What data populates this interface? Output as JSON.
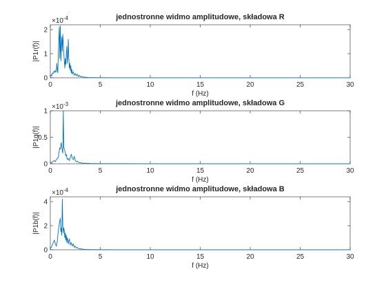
{
  "chart_data": [
    {
      "type": "line",
      "title": "jednostronne widmo amplitudowe, składowa R",
      "xlabel": "f (Hz)",
      "ylabel": "|P1r(f)|",
      "xlim": [
        0,
        30
      ],
      "ylim": [
        0,
        2.2
      ],
      "y_exponent_label": "×10",
      "y_exponent_power": "-4",
      "y_exponent": -4,
      "xticks": [
        "0",
        "5",
        "10",
        "15",
        "20",
        "25",
        "30"
      ],
      "yticks": [
        "0",
        "1",
        "2"
      ],
      "color": "#0072bd",
      "grid": false,
      "series": [
        {
          "x": [
            0.0,
            0.08,
            0.15,
            0.22,
            0.3,
            0.38,
            0.45,
            0.52,
            0.6,
            0.65,
            0.7,
            0.75,
            0.8,
            0.85,
            0.9,
            0.95,
            1.0,
            1.03,
            1.06,
            1.1,
            1.15,
            1.2,
            1.25,
            1.3,
            1.35,
            1.4,
            1.45,
            1.5,
            1.55,
            1.6,
            1.65,
            1.7,
            1.75,
            1.8,
            1.85,
            1.9,
            1.95,
            2.0,
            2.05,
            2.1,
            2.15,
            2.2,
            2.3,
            2.4,
            2.5,
            2.6,
            2.7,
            2.8,
            2.9,
            3.0,
            3.1,
            3.2,
            3.4,
            3.6,
            3.8,
            4.0,
            5.0,
            7.0,
            10.0,
            15.0,
            20.0,
            25.0,
            30.0
          ],
          "y": [
            0.05,
            0.12,
            0.08,
            0.2,
            0.18,
            0.28,
            0.22,
            0.3,
            0.25,
            0.6,
            0.35,
            0.2,
            1.0,
            1.6,
            2.1,
            0.8,
            2.15,
            1.2,
            0.7,
            1.3,
            1.7,
            1.1,
            1.8,
            1.4,
            1.0,
            0.7,
            0.4,
            0.8,
            0.55,
            1.0,
            1.3,
            0.6,
            0.9,
            1.6,
            0.8,
            0.4,
            0.6,
            0.3,
            0.5,
            0.2,
            0.35,
            0.15,
            0.25,
            0.1,
            0.18,
            0.08,
            0.15,
            0.05,
            0.1,
            0.04,
            0.06,
            0.03,
            0.03,
            0.02,
            0.01,
            0.01,
            0.005,
            0.003,
            0.002,
            0.001,
            0.001,
            0.001,
            0.001
          ]
        }
      ]
    },
    {
      "type": "line",
      "title": "jednostronne widmo amplitudowe, składowa G",
      "xlabel": "f (Hz)",
      "ylabel": "|P1g(f)|",
      "xlim": [
        0,
        30
      ],
      "ylim": [
        0,
        1
      ],
      "y_exponent_label": "×10",
      "y_exponent_power": "-3",
      "y_exponent": -3,
      "xticks": [
        "0",
        "5",
        "10",
        "15",
        "20",
        "25",
        "30"
      ],
      "yticks": [
        "0",
        "0.5",
        "1"
      ],
      "color": "#0072bd",
      "grid": false,
      "series": [
        {
          "x": [
            0.0,
            0.1,
            0.2,
            0.3,
            0.4,
            0.5,
            0.6,
            0.7,
            0.8,
            0.85,
            0.9,
            0.95,
            1.0,
            1.05,
            1.1,
            1.15,
            1.2,
            1.25,
            1.3,
            1.35,
            1.4,
            1.45,
            1.5,
            1.55,
            1.6,
            1.65,
            1.7,
            1.8,
            1.9,
            2.0,
            2.1,
            2.2,
            2.3,
            2.4,
            2.5,
            2.6,
            2.7,
            2.8,
            2.9,
            3.0,
            3.2,
            3.5,
            4.0,
            5.0,
            7.0,
            10.0,
            15.0,
            20.0,
            25.0,
            30.0
          ],
          "y": [
            0.01,
            0.02,
            0.03,
            0.05,
            0.06,
            0.04,
            0.08,
            0.1,
            0.12,
            0.2,
            0.25,
            0.3,
            0.28,
            0.35,
            0.4,
            0.3,
            0.25,
            0.2,
            1.0,
            0.3,
            0.28,
            0.25,
            0.2,
            0.15,
            0.18,
            0.12,
            0.08,
            0.1,
            0.06,
            0.12,
            0.18,
            0.1,
            0.08,
            0.14,
            0.06,
            0.04,
            0.05,
            0.03,
            0.02,
            0.02,
            0.01,
            0.01,
            0.005,
            0.003,
            0.002,
            0.001,
            0.001,
            0.001,
            0.001,
            0.001
          ]
        }
      ]
    },
    {
      "type": "line",
      "title": "jednostronne widmo amplitudowe, składowa B",
      "xlabel": "f (Hz)",
      "ylabel": "|P1b(f)|",
      "xlim": [
        0,
        30
      ],
      "ylim": [
        0,
        4.4
      ],
      "y_exponent_label": "×10",
      "y_exponent_power": "-4",
      "y_exponent": -4,
      "xticks": [
        "0",
        "5",
        "10",
        "15",
        "20",
        "25",
        "30"
      ],
      "yticks": [
        "0",
        "2",
        "4"
      ],
      "color": "#0072bd",
      "grid": false,
      "series": [
        {
          "x": [
            0.0,
            0.1,
            0.2,
            0.3,
            0.4,
            0.5,
            0.6,
            0.7,
            0.8,
            0.9,
            1.0,
            1.05,
            1.1,
            1.15,
            1.2,
            1.25,
            1.3,
            1.35,
            1.4,
            1.45,
            1.5,
            1.55,
            1.6,
            1.65,
            1.7,
            1.8,
            1.9,
            2.0,
            2.1,
            2.2,
            2.3,
            2.4,
            2.5,
            2.6,
            2.7,
            2.8,
            3.0,
            3.2,
            3.5,
            4.0,
            5.0,
            7.0,
            10.0,
            15.0,
            20.0,
            25.0,
            30.0
          ],
          "y": [
            0.1,
            0.2,
            0.4,
            0.6,
            0.8,
            0.5,
            0.3,
            0.7,
            1.6,
            2.2,
            2.6,
            1.5,
            1.8,
            1.2,
            4.2,
            2.0,
            1.4,
            1.8,
            1.6,
            1.0,
            1.4,
            0.8,
            1.2,
            0.6,
            1.0,
            0.5,
            0.9,
            0.4,
            0.6,
            0.3,
            0.5,
            0.2,
            0.3,
            0.15,
            0.2,
            0.1,
            0.08,
            0.05,
            0.03,
            0.02,
            0.01,
            0.005,
            0.003,
            0.002,
            0.001,
            0.001,
            0.001
          ]
        }
      ]
    }
  ]
}
